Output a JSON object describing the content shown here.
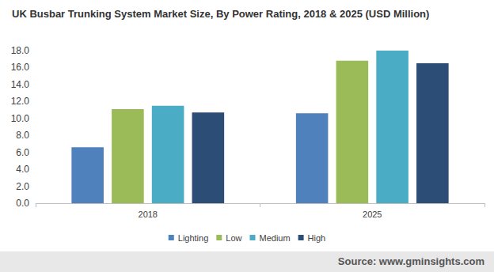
{
  "chart_data": {
    "type": "bar",
    "title": "UK Busbar Trunking System Market Size, By Power Rating, 2018 & 2025 (USD Million)",
    "source": "Source: www.gminsights.com",
    "categories": [
      "2018",
      "2025"
    ],
    "series": [
      {
        "name": "Lighting",
        "color": "#4f81bd",
        "values": [
          6.6,
          10.6
        ]
      },
      {
        "name": "Low",
        "color": "#9bbb59",
        "values": [
          11.1,
          16.8
        ]
      },
      {
        "name": "Medium",
        "color": "#4bacc6",
        "values": [
          11.5,
          18.0
        ]
      },
      {
        "name": "High",
        "color": "#2c4d75",
        "values": [
          10.7,
          16.5
        ]
      }
    ],
    "ylim": [
      0,
      18
    ],
    "yticks": [
      {
        "value": 0,
        "label": "0.0"
      },
      {
        "value": 2,
        "label": "2.0"
      },
      {
        "value": 4,
        "label": "4.0"
      },
      {
        "value": 6,
        "label": "6.0"
      },
      {
        "value": 8,
        "label": "8.0"
      },
      {
        "value": 10,
        "label": "10.0"
      },
      {
        "value": 12,
        "label": "12.0"
      },
      {
        "value": 14,
        "label": "14.0"
      },
      {
        "value": 16,
        "label": "16.0"
      },
      {
        "value": 18,
        "label": "18.0"
      }
    ],
    "grid": false,
    "legend": "bottom"
  }
}
